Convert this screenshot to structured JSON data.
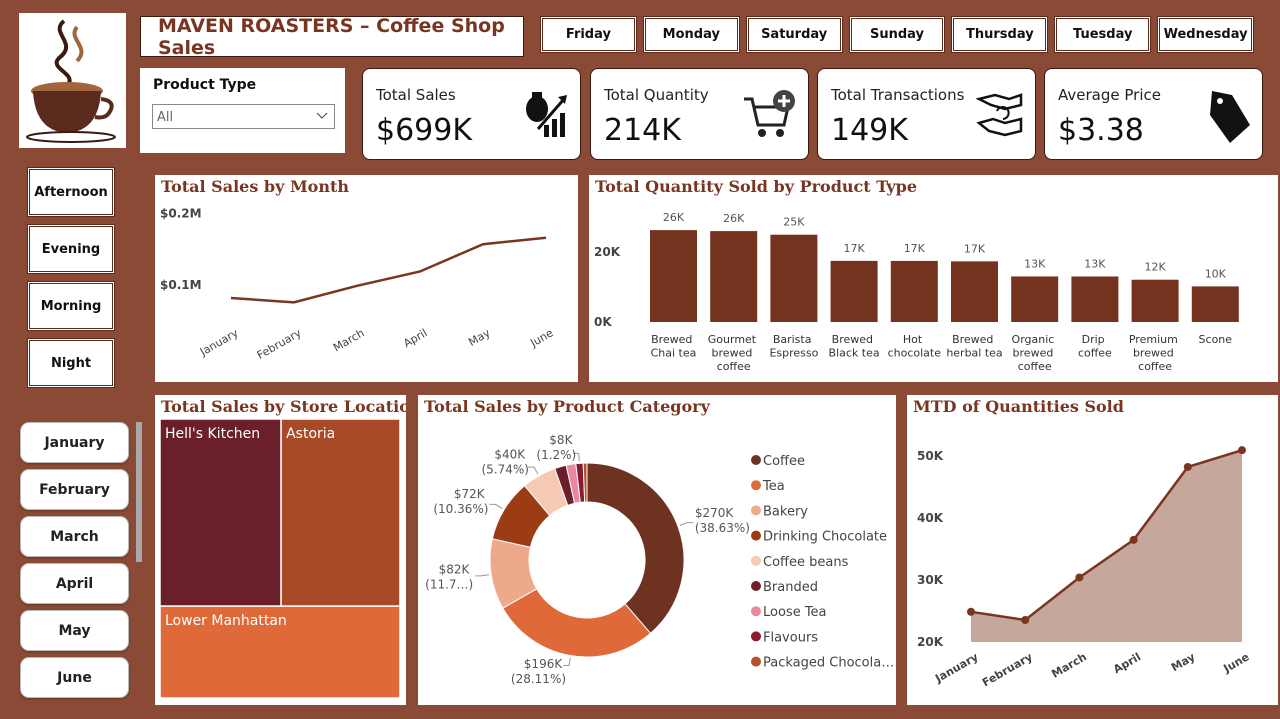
{
  "header": {
    "title": "MAVEN ROASTERS – Coffee Shop Sales"
  },
  "day_slicer": {
    "items": [
      "Friday",
      "Monday",
      "Saturday",
      "Sunday",
      "Thursday",
      "Tuesday",
      "Wednesday"
    ]
  },
  "product_type_slicer": {
    "label": "Product Type",
    "selected": "All"
  },
  "kpi_cards": [
    {
      "title": "Total Sales",
      "value": "$699K"
    },
    {
      "title": "Total Quantity",
      "value": "214K"
    },
    {
      "title": "Total Transactions",
      "value": "149K"
    },
    {
      "title": "Average Price",
      "value": "$3.38"
    }
  ],
  "time_slicer": {
    "items": [
      "Afternoon",
      "Evening",
      "Morning",
      "Night"
    ]
  },
  "month_slicer": {
    "items": [
      "January",
      "February",
      "March",
      "April",
      "May",
      "June"
    ]
  },
  "chart_data": [
    {
      "type": "line",
      "title": "Total Sales by Month",
      "categories": [
        "January",
        "February",
        "March",
        "April",
        "May",
        "June"
      ],
      "values": [
        82000,
        76000,
        99000,
        119000,
        157000,
        166000
      ],
      "color": "#7a3520",
      "ylim": [
        50000,
        220000
      ],
      "yticks": [
        {
          "value": 100000,
          "label": "$0.1M"
        },
        {
          "value": 200000,
          "label": "$0.2M"
        }
      ]
    },
    {
      "type": "bar",
      "title": "Total Quantity Sold by Product Type",
      "categories": [
        "Brewed Chai tea",
        "Gourmet brewed coffee",
        "Barista Espresso",
        "Brewed Black tea",
        "Hot chocolate",
        "Brewed herbal tea",
        "Organic brewed coffee",
        "Drip coffee",
        "Premium brewed coffee",
        "Scone"
      ],
      "values": [
        26250,
        25973,
        24943,
        17462,
        17457,
        17328,
        13012,
        13008,
        12079,
        10173
      ],
      "value_labels": [
        "26K",
        "26K",
        "25K",
        "17K",
        "17K",
        "17K",
        "13K",
        "13K",
        "12K",
        "10K"
      ],
      "color": "#74331f",
      "ylim": [
        0,
        33000
      ],
      "yticks": [
        {
          "value": 0,
          "label": "0K"
        },
        {
          "value": 20000,
          "label": "20K"
        }
      ]
    },
    {
      "type": "treemap",
      "title": "Total Sales by Store Location",
      "categories": [
        "Hell's Kitchen",
        "Astoria",
        "Lower Manhattan"
      ],
      "values": [
        236511,
        232244,
        230057
      ],
      "colors": [
        "#6b1f2a",
        "#a84a28",
        "#e0693a"
      ]
    },
    {
      "type": "donut",
      "title": "Total Sales by Product Category",
      "categories": [
        "Coffee",
        "Tea",
        "Bakery",
        "Drinking Chocolate",
        "Coffee beans",
        "Branded",
        "Loose Tea",
        "Flavours",
        "Packaged Chocola…"
      ],
      "values": [
        269952,
        196406,
        82316,
        72416,
        40085,
        13607,
        11214,
        8409,
        4408
      ],
      "value_labels": [
        "$270K (38.63%)",
        "$196K (28.11%)",
        "$82K (11.7…)",
        "$72K (10.36%)",
        "$40K (5.74%)",
        null,
        null,
        "$8K (1.2%)",
        null
      ],
      "colors": [
        "#6e3320",
        "#e0693a",
        "#eea98a",
        "#9c3c14",
        "#f5c9b4",
        "#6b1f2a",
        "#e889a0",
        "#8a1a30",
        "#b5502a"
      ]
    },
    {
      "type": "area",
      "title": "MTD of Quantities Sold",
      "categories": [
        "January",
        "February",
        "March",
        "April",
        "May",
        "June"
      ],
      "values": [
        24870,
        23550,
        30406,
        36469,
        48233,
        50942
      ],
      "color": "#7a3520",
      "fill_color": "#c6a79c",
      "ylim": [
        20000,
        53000
      ],
      "yticks": [
        {
          "value": 20000,
          "label": "20K"
        },
        {
          "value": 30000,
          "label": "30K"
        },
        {
          "value": 40000,
          "label": "40K"
        },
        {
          "value": 50000,
          "label": "50K"
        }
      ]
    }
  ]
}
